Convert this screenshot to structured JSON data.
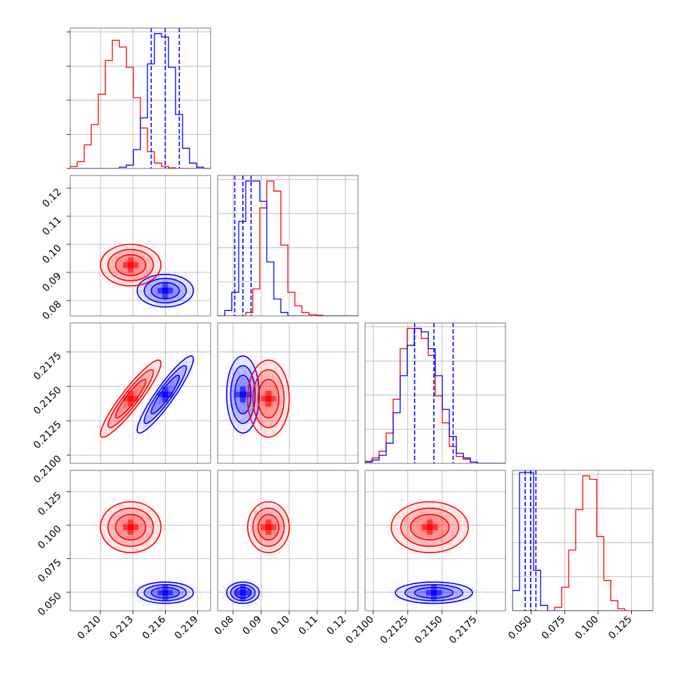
{
  "colors": {
    "blue": "#0000ff",
    "red": "#ff0000",
    "grid": "#b0b0b0",
    "axes": "#000000"
  },
  "chart_data": {
    "type": "corner",
    "parameters": [
      {
        "ticks": [
          0.21,
          0.213,
          0.216,
          0.219
        ],
        "tick_labels": [
          "0.210",
          "0.213",
          "0.216",
          "0.219"
        ],
        "range": [
          0.2072,
          0.2202
        ]
      },
      {
        "ticks": [
          0.08,
          0.09,
          0.1,
          0.11,
          0.12
        ],
        "tick_labels": [
          "0.08",
          "0.09",
          "0.10",
          "0.11",
          "0.12"
        ],
        "range": [
          0.0745,
          0.1245
        ]
      },
      {
        "ticks": [
          0.21,
          0.2125,
          0.215,
          0.2175
        ],
        "tick_labels": [
          "0.2100",
          "0.2125",
          "0.2150",
          "0.2175"
        ],
        "range": [
          0.2094,
          0.2196
        ]
      },
      {
        "ticks": [
          0.05,
          0.075,
          0.1,
          0.125
        ],
        "tick_labels": [
          "0.050",
          "0.075",
          "0.100",
          "0.125"
        ],
        "range": [
          0.036,
          0.141
        ]
      }
    ],
    "series": [
      {
        "color": "blue",
        "mean": [
          0.216,
          0.0835,
          0.2144,
          0.0495
        ],
        "sd": [
          0.0013,
          0.0029,
          0.0014,
          0.004
        ],
        "quantiles_shown": true
      },
      {
        "color": "red",
        "mean": [
          0.2128,
          0.0926,
          0.2141,
          0.0985
        ],
        "sd": [
          0.0014,
          0.0037,
          0.0014,
          0.0095
        ],
        "quantiles_shown": false
      }
    ],
    "correlations": [
      [
        1,
        0,
        0.92,
        0
      ],
      [
        0,
        1,
        0,
        0
      ],
      [
        0.92,
        0,
        1,
        0
      ],
      [
        0,
        0,
        0,
        1
      ]
    ],
    "histograms": {
      "bins": 20,
      "counts": [
        {
          "blue": [
            0,
            0,
            0,
            0,
            0,
            0,
            0,
            2,
            5,
            28,
            75,
            155,
            200,
            195,
            150,
            80,
            30,
            8,
            2,
            0
          ],
          "red": [
            3,
            10,
            35,
            65,
            110,
            160,
            190,
            180,
            150,
            105,
            60,
            25,
            8,
            3,
            1,
            0,
            0,
            0,
            0,
            0
          ]
        },
        {
          "blue": [
            0,
            8,
            35,
            140,
            200,
            200,
            170,
            80,
            25,
            5,
            0,
            0,
            0,
            0,
            0,
            0,
            0,
            0,
            0,
            0
          ],
          "red": [
            0,
            0,
            0,
            0,
            5,
            40,
            160,
            200,
            185,
            105,
            35,
            15,
            5,
            2,
            1,
            0,
            0,
            0,
            0,
            0
          ]
        },
        {
          "blue": [
            2,
            5,
            12,
            30,
            75,
            130,
            175,
            200,
            195,
            170,
            130,
            80,
            40,
            15,
            8,
            2,
            0,
            0,
            0,
            0
          ],
          "red": [
            3,
            8,
            18,
            45,
            95,
            170,
            200,
            200,
            185,
            160,
            100,
            60,
            25,
            10,
            6,
            2,
            0,
            0,
            0,
            0
          ]
        },
        {
          "blue": [
            30,
            205,
            205,
            60,
            8,
            0,
            0,
            0,
            0,
            0,
            0,
            0,
            0,
            0,
            0,
            0,
            0,
            0,
            0,
            0
          ],
          "red": [
            0,
            0,
            0,
            0,
            0,
            0,
            5,
            35,
            90,
            150,
            200,
            195,
            110,
            45,
            15,
            3,
            0,
            0,
            0,
            0
          ]
        }
      ]
    },
    "quantile_lines_blue": [
      [
        0.2147,
        0.216,
        0.2173
      ],
      [
        0.0806,
        0.0835,
        0.0864
      ],
      [
        0.213,
        0.2144,
        0.2158
      ],
      [
        0.0455,
        0.0495,
        0.0535
      ]
    ],
    "grid": true,
    "legend": "none"
  }
}
